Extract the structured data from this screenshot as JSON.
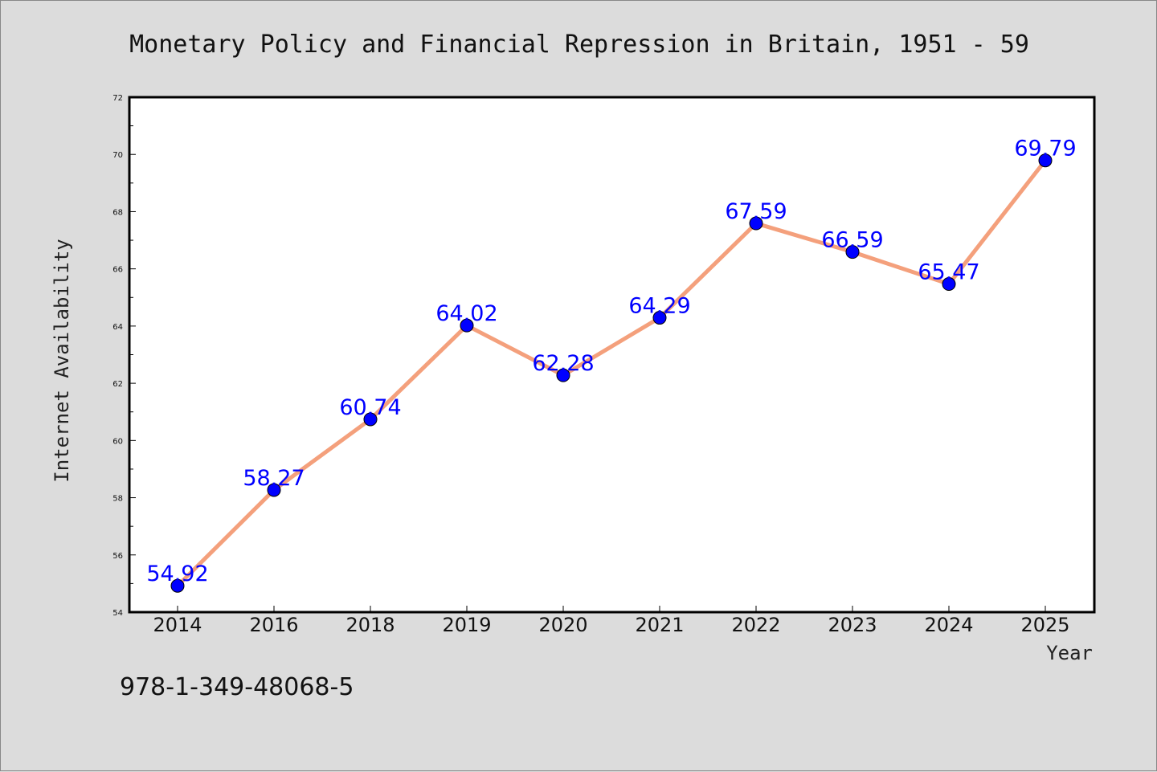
{
  "footer": {
    "text": "978-1-349-48068-5"
  },
  "chart_data": {
    "type": "line",
    "title": "Monetary Policy and Financial Repression in Britain, 1951 - 59",
    "xlabel": "Year",
    "ylabel": "Internet Availability",
    "categories": [
      "2014",
      "2016",
      "2018",
      "2019",
      "2020",
      "2021",
      "2022",
      "2023",
      "2024",
      "2025"
    ],
    "values": [
      54.92,
      58.27,
      60.74,
      64.02,
      62.28,
      64.29,
      67.59,
      66.59,
      65.47,
      69.79
    ],
    "data_labels": [
      "54.92",
      "58.27",
      "60.74",
      "64.02",
      "62.28",
      "64.29",
      "67.59",
      "66.59",
      "65.47",
      "69.79"
    ],
    "ylim": [
      54,
      72
    ],
    "yticks": [
      54,
      56,
      58,
      60,
      62,
      64,
      66,
      68,
      70,
      72
    ],
    "yminor_step": 1,
    "grid": false,
    "legend": "none",
    "line_color": "#f4a07c",
    "marker_color": "#0000ff",
    "label_color": "#0000ff"
  }
}
